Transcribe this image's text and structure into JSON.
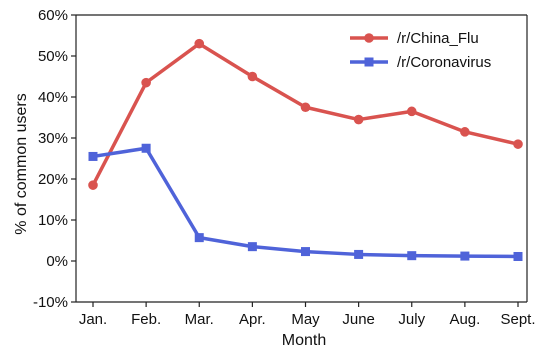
{
  "chart_data": {
    "type": "line",
    "title": "",
    "xlabel": "Month",
    "ylabel": "% of common users",
    "categories": [
      "Jan.",
      "Feb.",
      "Mar.",
      "Apr.",
      "May",
      "June",
      "July",
      "Aug.",
      "Sept."
    ],
    "ylim": [
      -10,
      60
    ],
    "yticks": [
      -10,
      0,
      10,
      20,
      30,
      40,
      50,
      60
    ],
    "ytick_labels": [
      "-10%",
      "0%",
      "10%",
      "20%",
      "30%",
      "40%",
      "50%",
      "60%"
    ],
    "grid": false,
    "legend_position": "top-right",
    "series": [
      {
        "name": "/r/China_Flu",
        "color": "#d9534f",
        "marker": "circle",
        "values": [
          18.5,
          43.5,
          53.0,
          45.0,
          37.5,
          34.5,
          36.5,
          31.5,
          28.5
        ]
      },
      {
        "name": "/r/Coronavirus",
        "color": "#4f63d9",
        "marker": "square",
        "values": [
          25.5,
          27.5,
          5.7,
          3.5,
          2.3,
          1.6,
          1.3,
          1.2,
          1.1
        ]
      }
    ]
  }
}
